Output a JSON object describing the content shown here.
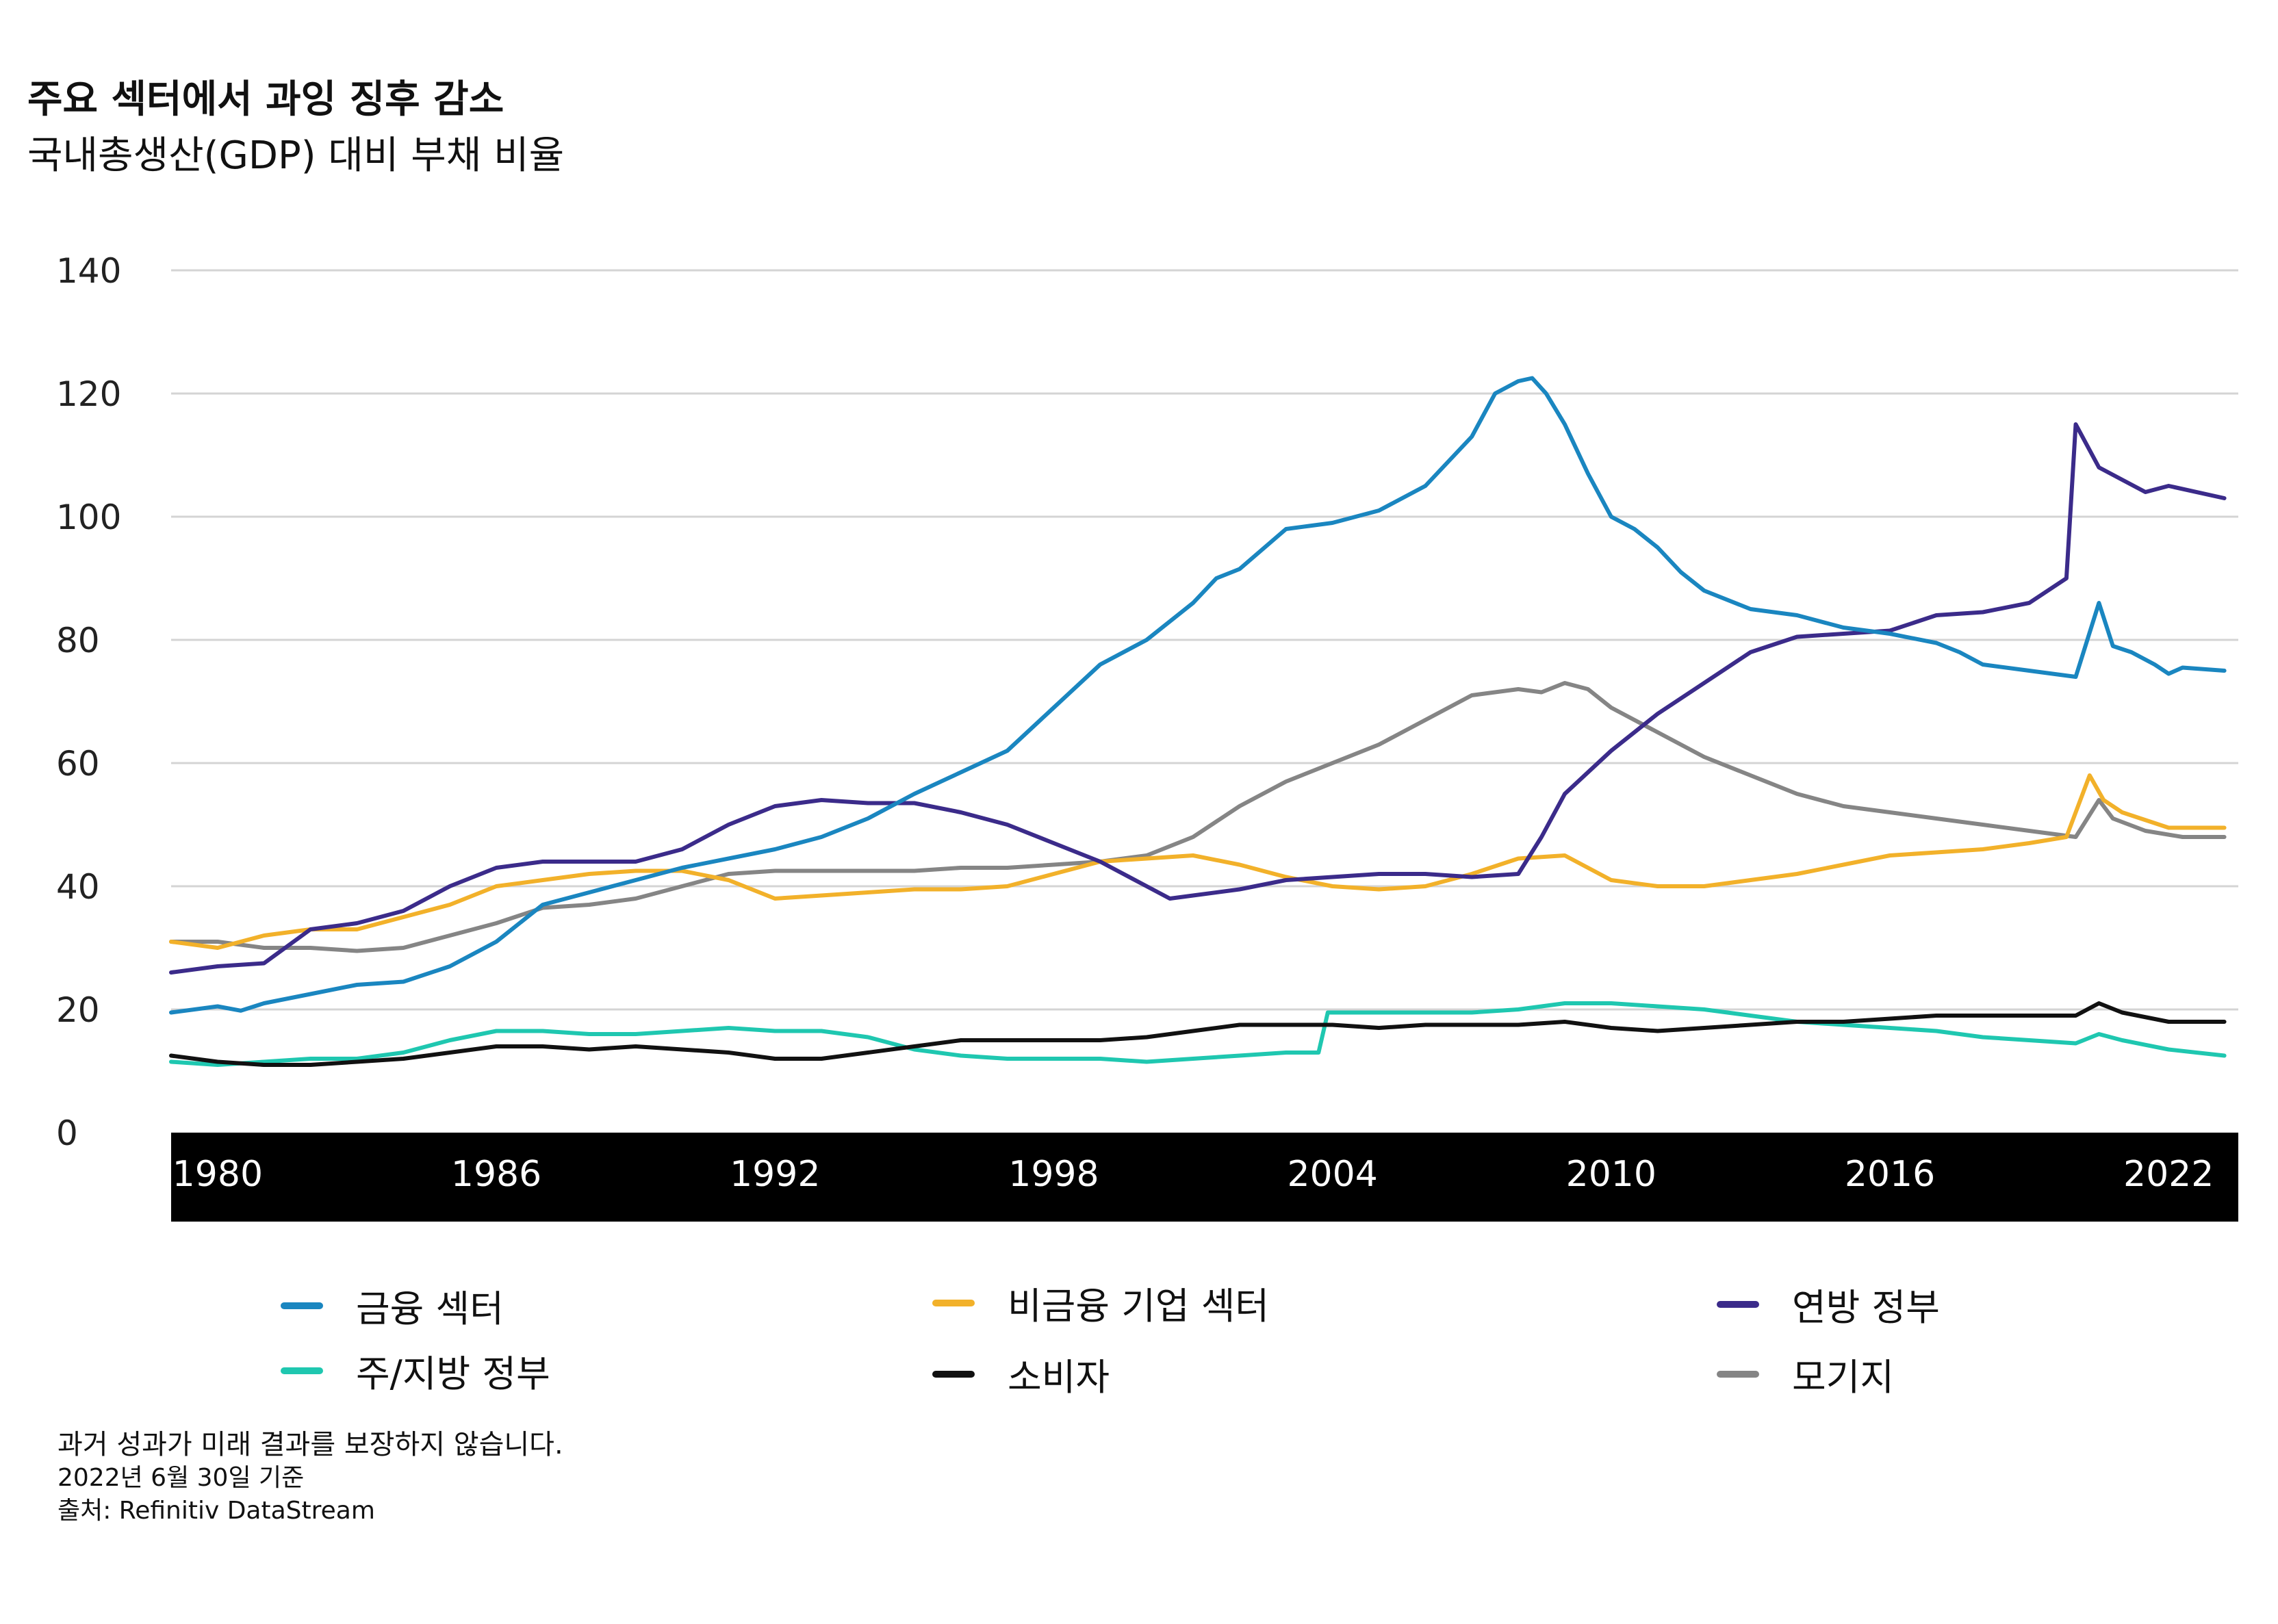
{
  "title": "주요 섹터에서 과잉 징후 감소",
  "subtitle": "국내총생산(GDP) 대비 부채 비율",
  "footnotes": {
    "line1": "과거 성과가 미래 결과를 보장하지 않습니다.",
    "line2": "2022년 6월 30일 기준",
    "line3": "출처: Refinitiv DataStream"
  },
  "chart_data": {
    "type": "line",
    "title": "주요 섹터에서 과잉 징후 감소",
    "subtitle": "국내총생산(GDP) 대비 부채 비율",
    "xlabel": "",
    "ylabel": "",
    "xlim": [
      1979,
      2023.5
    ],
    "ylim": [
      0,
      140
    ],
    "yticks": [
      0,
      20,
      40,
      60,
      80,
      100,
      120,
      140
    ],
    "xticks": [
      1980,
      1986,
      1992,
      1998,
      2004,
      2010,
      2016,
      2022
    ],
    "grid": true,
    "legend_position": "bottom",
    "series": [
      {
        "name": "금융 섹터",
        "color": "#1a86c0",
        "points": [
          [
            1979,
            19.5
          ],
          [
            1980,
            20.5
          ],
          [
            1980.5,
            19.8
          ],
          [
            1981,
            21
          ],
          [
            1982,
            22.5
          ],
          [
            1983,
            24
          ],
          [
            1984,
            24.5
          ],
          [
            1985,
            27
          ],
          [
            1986,
            31
          ],
          [
            1987,
            37
          ],
          [
            1988,
            39
          ],
          [
            1989,
            41
          ],
          [
            1990,
            43
          ],
          [
            1991,
            44.5
          ],
          [
            1992,
            46
          ],
          [
            1993,
            48
          ],
          [
            1994,
            51
          ],
          [
            1995,
            55
          ],
          [
            1996,
            58.5
          ],
          [
            1997,
            62
          ],
          [
            1998,
            69
          ],
          [
            1999,
            76
          ],
          [
            2000,
            80
          ],
          [
            2001,
            86
          ],
          [
            2001.5,
            90
          ],
          [
            2002,
            91.5
          ],
          [
            2003,
            98
          ],
          [
            2003.5,
            98.5
          ],
          [
            2004,
            99
          ],
          [
            2005,
            101
          ],
          [
            2006,
            105
          ],
          [
            2007,
            113
          ],
          [
            2007.5,
            120
          ],
          [
            2008,
            122
          ],
          [
            2008.3,
            122.5
          ],
          [
            2008.6,
            120
          ],
          [
            2009,
            115
          ],
          [
            2009.5,
            107
          ],
          [
            2010,
            100
          ],
          [
            2010.5,
            98
          ],
          [
            2011,
            95
          ],
          [
            2011.5,
            91
          ],
          [
            2012,
            88
          ],
          [
            2013,
            85
          ],
          [
            2014,
            84
          ],
          [
            2015,
            82
          ],
          [
            2016,
            81
          ],
          [
            2017,
            79.5
          ],
          [
            2017.5,
            78
          ],
          [
            2018,
            76
          ],
          [
            2019,
            75
          ],
          [
            2019.5,
            74.5
          ],
          [
            2020,
            74
          ],
          [
            2020.5,
            86
          ],
          [
            2020.8,
            79
          ],
          [
            2021.2,
            78
          ],
          [
            2021.7,
            76
          ],
          [
            2022,
            74.5
          ],
          [
            2022.3,
            75.5
          ],
          [
            2023.2,
            75
          ]
        ]
      },
      {
        "name": "비금융 기업 섹터",
        "color": "#f2b12a",
        "points": [
          [
            1979,
            31
          ],
          [
            1980,
            30
          ],
          [
            1981,
            32
          ],
          [
            1982,
            33
          ],
          [
            1983,
            33
          ],
          [
            1984,
            35
          ],
          [
            1985,
            37
          ],
          [
            1986,
            40
          ],
          [
            1987,
            41
          ],
          [
            1988,
            42
          ],
          [
            1989,
            42.5
          ],
          [
            1990,
            42.5
          ],
          [
            1991,
            41
          ],
          [
            1992,
            38
          ],
          [
            1993,
            38.5
          ],
          [
            1994,
            39
          ],
          [
            1995,
            39.5
          ],
          [
            1996,
            39.5
          ],
          [
            1997,
            40
          ],
          [
            1998,
            42
          ],
          [
            1999,
            44
          ],
          [
            2000,
            44.5
          ],
          [
            2001,
            45
          ],
          [
            2002,
            43.5
          ],
          [
            2003,
            41.5
          ],
          [
            2004,
            40
          ],
          [
            2005,
            39.5
          ],
          [
            2006,
            40
          ],
          [
            2007,
            42
          ],
          [
            2008,
            44.5
          ],
          [
            2009,
            45
          ],
          [
            2009.5,
            43
          ],
          [
            2010,
            41
          ],
          [
            2011,
            40
          ],
          [
            2012,
            40
          ],
          [
            2013,
            41
          ],
          [
            2014,
            42
          ],
          [
            2015,
            43.5
          ],
          [
            2016,
            45
          ],
          [
            2017,
            45.5
          ],
          [
            2018,
            46
          ],
          [
            2019,
            47
          ],
          [
            2019.8,
            48
          ],
          [
            2020.3,
            58
          ],
          [
            2020.6,
            54
          ],
          [
            2021,
            52
          ],
          [
            2022,
            49.5
          ],
          [
            2023.2,
            49.5
          ]
        ]
      },
      {
        "name": "연방 정부",
        "color": "#3b2b8a",
        "points": [
          [
            1979,
            26
          ],
          [
            1980,
            27
          ],
          [
            1981,
            27.5
          ],
          [
            1982,
            33
          ],
          [
            1983,
            34
          ],
          [
            1984,
            36
          ],
          [
            1985,
            40
          ],
          [
            1986,
            43
          ],
          [
            1987,
            44
          ],
          [
            1988,
            44
          ],
          [
            1989,
            44
          ],
          [
            1990,
            46
          ],
          [
            1991,
            50
          ],
          [
            1992,
            53
          ],
          [
            1993,
            54
          ],
          [
            1994,
            53.5
          ],
          [
            1995,
            53.5
          ],
          [
            1996,
            52
          ],
          [
            1997,
            50
          ],
          [
            1998,
            47
          ],
          [
            1999,
            44
          ],
          [
            2000,
            40
          ],
          [
            2000.5,
            38
          ],
          [
            2001,
            38.5
          ],
          [
            2002,
            39.5
          ],
          [
            2003,
            41
          ],
          [
            2004,
            41.5
          ],
          [
            2005,
            42
          ],
          [
            2006,
            42
          ],
          [
            2007,
            41.5
          ],
          [
            2008,
            42
          ],
          [
            2008.5,
            48
          ],
          [
            2009,
            55
          ],
          [
            2010,
            62
          ],
          [
            2011,
            68
          ],
          [
            2012,
            73
          ],
          [
            2013,
            78
          ],
          [
            2014,
            80.5
          ],
          [
            2015,
            81
          ],
          [
            2016,
            81.5
          ],
          [
            2017,
            84
          ],
          [
            2018,
            84.5
          ],
          [
            2019,
            86
          ],
          [
            2019.8,
            90
          ],
          [
            2020,
            115
          ],
          [
            2020.5,
            108
          ],
          [
            2021,
            106
          ],
          [
            2021.5,
            104
          ],
          [
            2022,
            105
          ],
          [
            2023.2,
            103
          ]
        ]
      },
      {
        "name": "주/지방 정부",
        "color": "#1fc7b0",
        "points": [
          [
            1979,
            11.5
          ],
          [
            1980,
            11
          ],
          [
            1981,
            11.5
          ],
          [
            1982,
            12
          ],
          [
            1983,
            12
          ],
          [
            1984,
            13
          ],
          [
            1985,
            15
          ],
          [
            1986,
            16.5
          ],
          [
            1987,
            16.5
          ],
          [
            1988,
            16
          ],
          [
            1989,
            16
          ],
          [
            1990,
            16.5
          ],
          [
            1991,
            17
          ],
          [
            1992,
            16.5
          ],
          [
            1993,
            16.5
          ],
          [
            1994,
            15.5
          ],
          [
            1995,
            13.5
          ],
          [
            1996,
            12.5
          ],
          [
            1997,
            12
          ],
          [
            1998,
            12
          ],
          [
            1999,
            12
          ],
          [
            2000,
            11.5
          ],
          [
            2001,
            12
          ],
          [
            2002,
            12.5
          ],
          [
            2003,
            13
          ],
          [
            2003.7,
            13
          ],
          [
            2003.9,
            19.5
          ],
          [
            2004,
            19.5
          ],
          [
            2005,
            19.5
          ],
          [
            2006,
            19.5
          ],
          [
            2007,
            19.5
          ],
          [
            2008,
            20
          ],
          [
            2009,
            21
          ],
          [
            2010,
            21
          ],
          [
            2011,
            20.5
          ],
          [
            2012,
            20
          ],
          [
            2013,
            19
          ],
          [
            2014,
            18
          ],
          [
            2015,
            17.5
          ],
          [
            2016,
            17
          ],
          [
            2017,
            16.5
          ],
          [
            2018,
            15.5
          ],
          [
            2019,
            15
          ],
          [
            2020,
            14.5
          ],
          [
            2020.5,
            16
          ],
          [
            2021,
            15
          ],
          [
            2022,
            13.5
          ],
          [
            2023.2,
            12.5
          ]
        ]
      },
      {
        "name": "소비자",
        "color": "#111111",
        "points": [
          [
            1979,
            12.5
          ],
          [
            1980,
            11.5
          ],
          [
            1981,
            11
          ],
          [
            1982,
            11
          ],
          [
            1983,
            11.5
          ],
          [
            1984,
            12
          ],
          [
            1985,
            13
          ],
          [
            1986,
            14
          ],
          [
            1987,
            14
          ],
          [
            1988,
            13.5
          ],
          [
            1989,
            14
          ],
          [
            1990,
            13.5
          ],
          [
            1991,
            13
          ],
          [
            1992,
            12
          ],
          [
            1993,
            12
          ],
          [
            1994,
            13
          ],
          [
            1995,
            14
          ],
          [
            1996,
            15
          ],
          [
            1997,
            15
          ],
          [
            1998,
            15
          ],
          [
            1999,
            15
          ],
          [
            2000,
            15.5
          ],
          [
            2001,
            16.5
          ],
          [
            2002,
            17.5
          ],
          [
            2003,
            17.5
          ],
          [
            2004,
            17.5
          ],
          [
            2005,
            17
          ],
          [
            2006,
            17.5
          ],
          [
            2007,
            17.5
          ],
          [
            2008,
            17.5
          ],
          [
            2009,
            18
          ],
          [
            2010,
            17
          ],
          [
            2011,
            16.5
          ],
          [
            2012,
            17
          ],
          [
            2013,
            17.5
          ],
          [
            2014,
            18
          ],
          [
            2015,
            18
          ],
          [
            2016,
            18.5
          ],
          [
            2017,
            19
          ],
          [
            2018,
            19
          ],
          [
            2019,
            19
          ],
          [
            2020,
            19
          ],
          [
            2020.5,
            21
          ],
          [
            2021,
            19.5
          ],
          [
            2022,
            18
          ],
          [
            2023.2,
            18
          ]
        ]
      },
      {
        "name": "모기지",
        "color": "#858585",
        "points": [
          [
            1979,
            31
          ],
          [
            1980,
            31
          ],
          [
            1981,
            30
          ],
          [
            1982,
            30
          ],
          [
            1983,
            29.5
          ],
          [
            1984,
            30
          ],
          [
            1985,
            32
          ],
          [
            1986,
            34
          ],
          [
            1987,
            36.5
          ],
          [
            1988,
            37
          ],
          [
            1989,
            38
          ],
          [
            1990,
            40
          ],
          [
            1991,
            42
          ],
          [
            1992,
            42.5
          ],
          [
            1993,
            42.5
          ],
          [
            1994,
            42.5
          ],
          [
            1995,
            42.5
          ],
          [
            1996,
            43
          ],
          [
            1997,
            43
          ],
          [
            1998,
            43.5
          ],
          [
            1999,
            44
          ],
          [
            2000,
            45
          ],
          [
            2001,
            48
          ],
          [
            2002,
            53
          ],
          [
            2003,
            57
          ],
          [
            2004,
            60
          ],
          [
            2005,
            63
          ],
          [
            2006,
            67
          ],
          [
            2007,
            71
          ],
          [
            2008,
            72
          ],
          [
            2008.5,
            71.5
          ],
          [
            2009,
            73
          ],
          [
            2009.5,
            72
          ],
          [
            2010,
            69
          ],
          [
            2011,
            65
          ],
          [
            2012,
            61
          ],
          [
            2013,
            58
          ],
          [
            2014,
            55
          ],
          [
            2015,
            53
          ],
          [
            2016,
            52
          ],
          [
            2017,
            51
          ],
          [
            2018,
            50
          ],
          [
            2019,
            49
          ],
          [
            2019.5,
            48.5
          ],
          [
            2020,
            48
          ],
          [
            2020.5,
            54
          ],
          [
            2020.8,
            51
          ],
          [
            2021.5,
            49
          ],
          [
            2022.3,
            48
          ],
          [
            2023.2,
            48
          ]
        ]
      }
    ]
  }
}
